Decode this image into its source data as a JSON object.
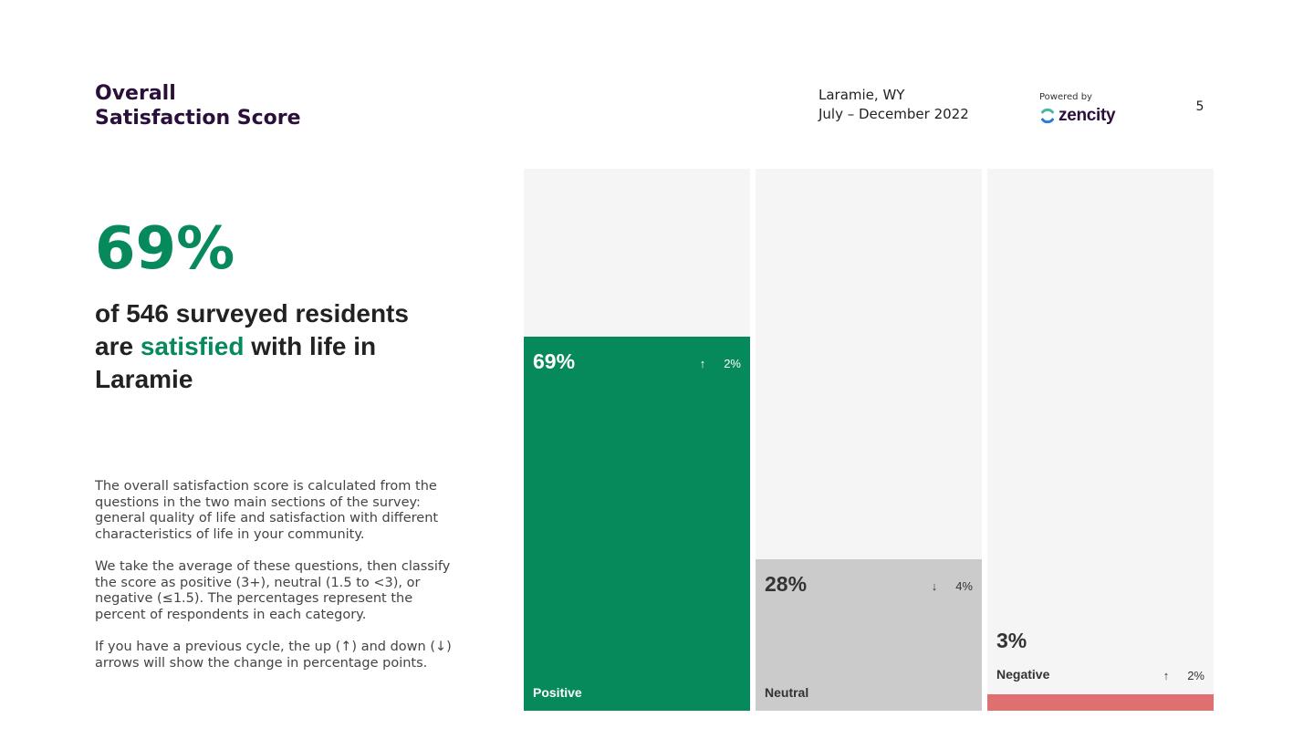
{
  "header": {
    "title_line1": "Overall",
    "title_line2": "Satisfaction Score",
    "location": "Laramie, WY",
    "period": "July – December 2022",
    "powered_by": "Powered by",
    "brand": "zencity",
    "page_number": "5"
  },
  "summary": {
    "big_percent": "69%",
    "headline_part1": "of 546 surveyed residents are ",
    "headline_highlight": "satisfied",
    "headline_part2": " with life in Laramie"
  },
  "description": {
    "p1": "The overall satisfaction score is calculated from the questions in the two main sections of the survey: general quality of life and satisfaction with different characteristics of life in your community.",
    "p2": "We take the average of these questions, then classify the score as positive (3+), neutral (1.5 to <3), or negative (≤1.5). The percentages represent the percent of respondents in each category.",
    "p3": "If you have a previous cycle, the up (↑) and down (↓) arrows will show the change in percentage points."
  },
  "colors": {
    "positive": "#078a5b",
    "neutral": "#cbcbcb",
    "negative": "#e07070",
    "track": "#f5f5f5",
    "title": "#2a0f3a"
  },
  "chart_data": {
    "type": "bar",
    "categories": [
      "Positive",
      "Neutral",
      "Negative"
    ],
    "values": [
      69,
      28,
      3
    ],
    "value_labels": [
      "69%",
      "28%",
      "3%"
    ],
    "change_direction": [
      "up",
      "down",
      "up"
    ],
    "change_labels": [
      "2%",
      "4%",
      "2%"
    ],
    "ylim": [
      0,
      100
    ],
    "title": "",
    "xlabel": "",
    "ylabel": ""
  }
}
